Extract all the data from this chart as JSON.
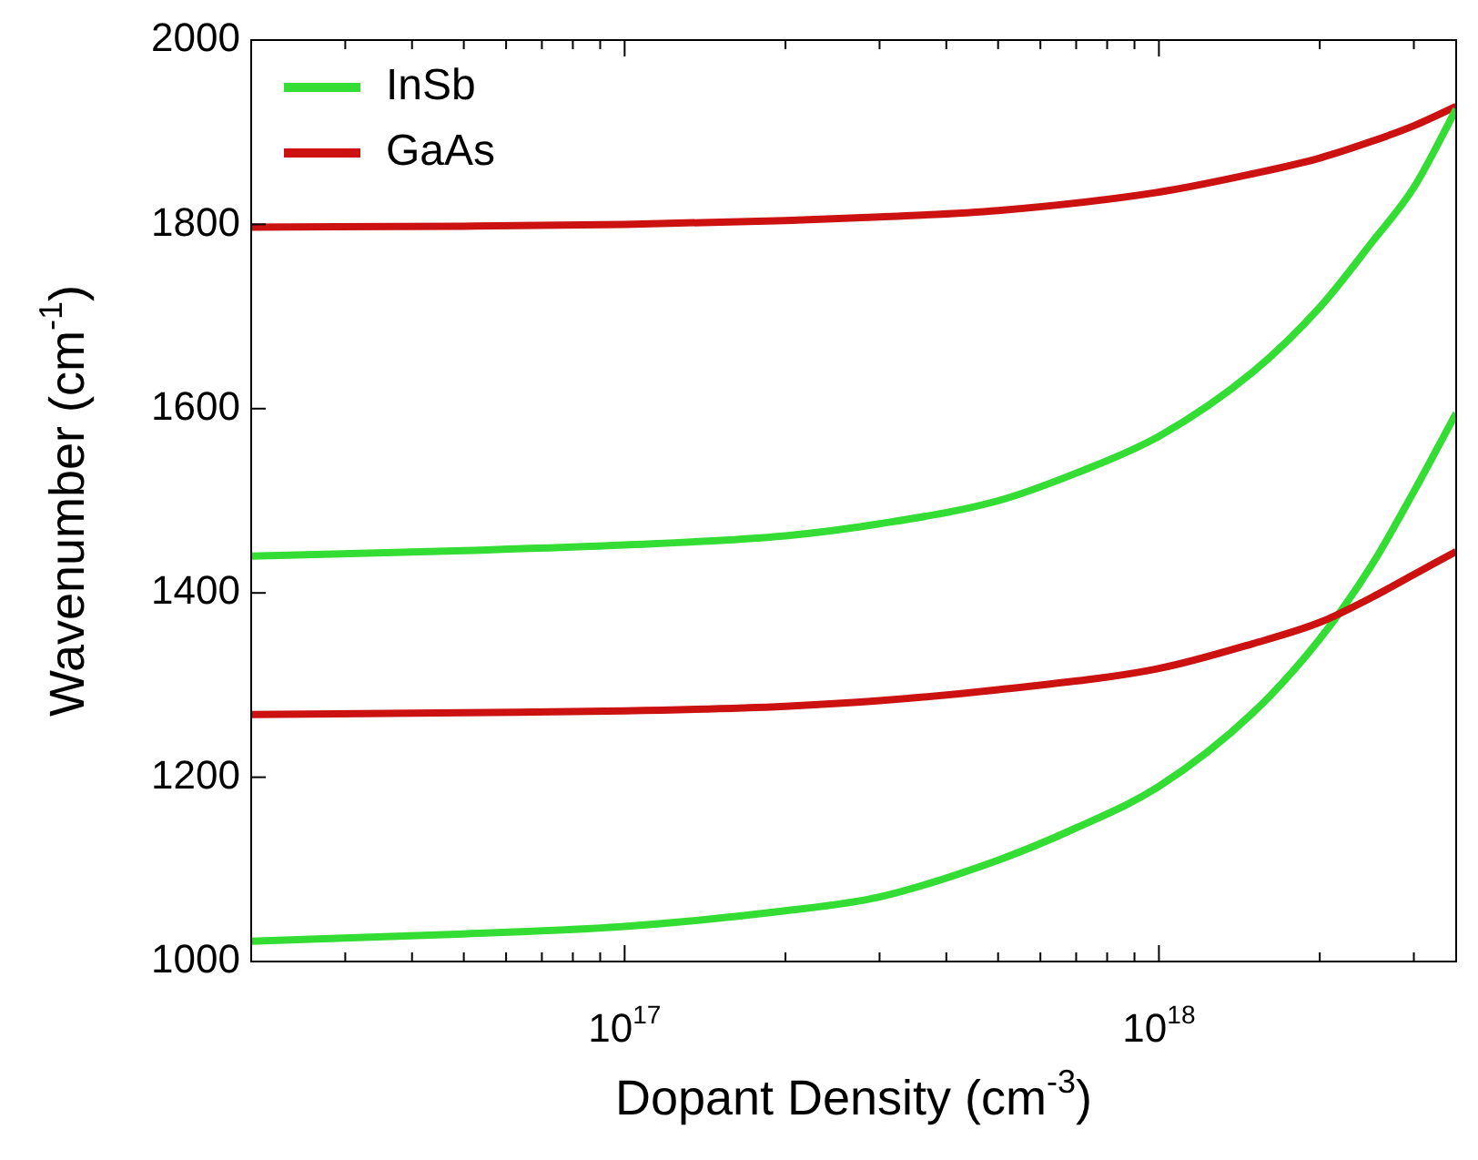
{
  "chart_data": {
    "type": "line",
    "xlabel": "Dopant Density (cm$^{-3}$)",
    "ylabel": "Wavenumber (cm$^{-1}$)",
    "log": "x",
    "grid": false,
    "legend": "top left",
    "marker": "none",
    "line_style": "solid",
    "xlim": [
      2e+16,
      3.6e+18
    ],
    "ylim": [
      1000,
      2000
    ],
    "yticks": [
      1000,
      1200,
      1400,
      1600,
      1800,
      2000
    ],
    "xticks": [
      {
        "value": 3e+16,
        "label": null
      },
      {
        "value": 4e+16,
        "label": null
      },
      {
        "value": 5e+16,
        "label": null
      },
      {
        "value": 6e+16,
        "label": null
      },
      {
        "value": 7e+16,
        "label": null
      },
      {
        "value": 8e+16,
        "label": null
      },
      {
        "value": 9e+16,
        "label": null
      },
      {
        "value": 1e+17,
        "label": "10$^{17}$"
      },
      {
        "value": 2e+17,
        "label": null
      },
      {
        "value": 3e+17,
        "label": null
      },
      {
        "value": 4e+17,
        "label": null
      },
      {
        "value": 5e+17,
        "label": null
      },
      {
        "value": 6e+17,
        "label": null
      },
      {
        "value": 7e+17,
        "label": null
      },
      {
        "value": 8e+17,
        "label": null
      },
      {
        "value": 9e+17,
        "label": null
      },
      {
        "value": 1e+18,
        "label": "10$^{18}$"
      },
      {
        "value": 2e+18,
        "label": null
      },
      {
        "value": 3e+18,
        "label": null
      }
    ],
    "series": [
      {
        "name": "InSb",
        "color": "#33dd33",
        "x": [
          2e+16,
          5e+16,
          1e+17,
          2e+17,
          3e+17,
          5e+17,
          7e+17,
          1e+18,
          1.5e+18,
          2e+18,
          2.5e+18,
          3e+18,
          3.6e+18
        ],
        "values": [
          1440,
          1446,
          1452,
          1462,
          1475,
          1500,
          1530,
          1570,
          1640,
          1710,
          1780,
          1840,
          1925
        ]
      },
      {
        "name": "GaAs",
        "color": "#cc1111",
        "x": [
          2e+16,
          5e+16,
          1e+17,
          2e+17,
          3e+17,
          5e+17,
          1e+18,
          1.5e+18,
          2e+18,
          2.5e+18,
          3e+18,
          3.6e+18
        ],
        "values": [
          1797,
          1798,
          1800,
          1804,
          1808,
          1815,
          1835,
          1855,
          1872,
          1890,
          1907,
          1928
        ]
      },
      {
        "color": "#cc1111",
        "x": [
          2e+16,
          5e+16,
          1e+17,
          2e+17,
          3e+17,
          5e+17,
          1e+18,
          1.5e+18,
          2e+18,
          2.5e+18,
          3e+18,
          3.6e+18
        ],
        "values": [
          1268,
          1270,
          1272,
          1277,
          1283,
          1295,
          1318,
          1345,
          1368,
          1395,
          1420,
          1445
        ]
      },
      {
        "color": "#33dd33",
        "x": [
          2e+16,
          5e+16,
          1e+17,
          2e+17,
          3e+17,
          5e+17,
          7e+17,
          1e+18,
          1.5e+18,
          2e+18,
          2.5e+18,
          3e+18,
          3.6e+18
        ],
        "values": [
          1022,
          1030,
          1038,
          1055,
          1070,
          1110,
          1145,
          1190,
          1270,
          1350,
          1430,
          1510,
          1595
        ]
      }
    ]
  }
}
